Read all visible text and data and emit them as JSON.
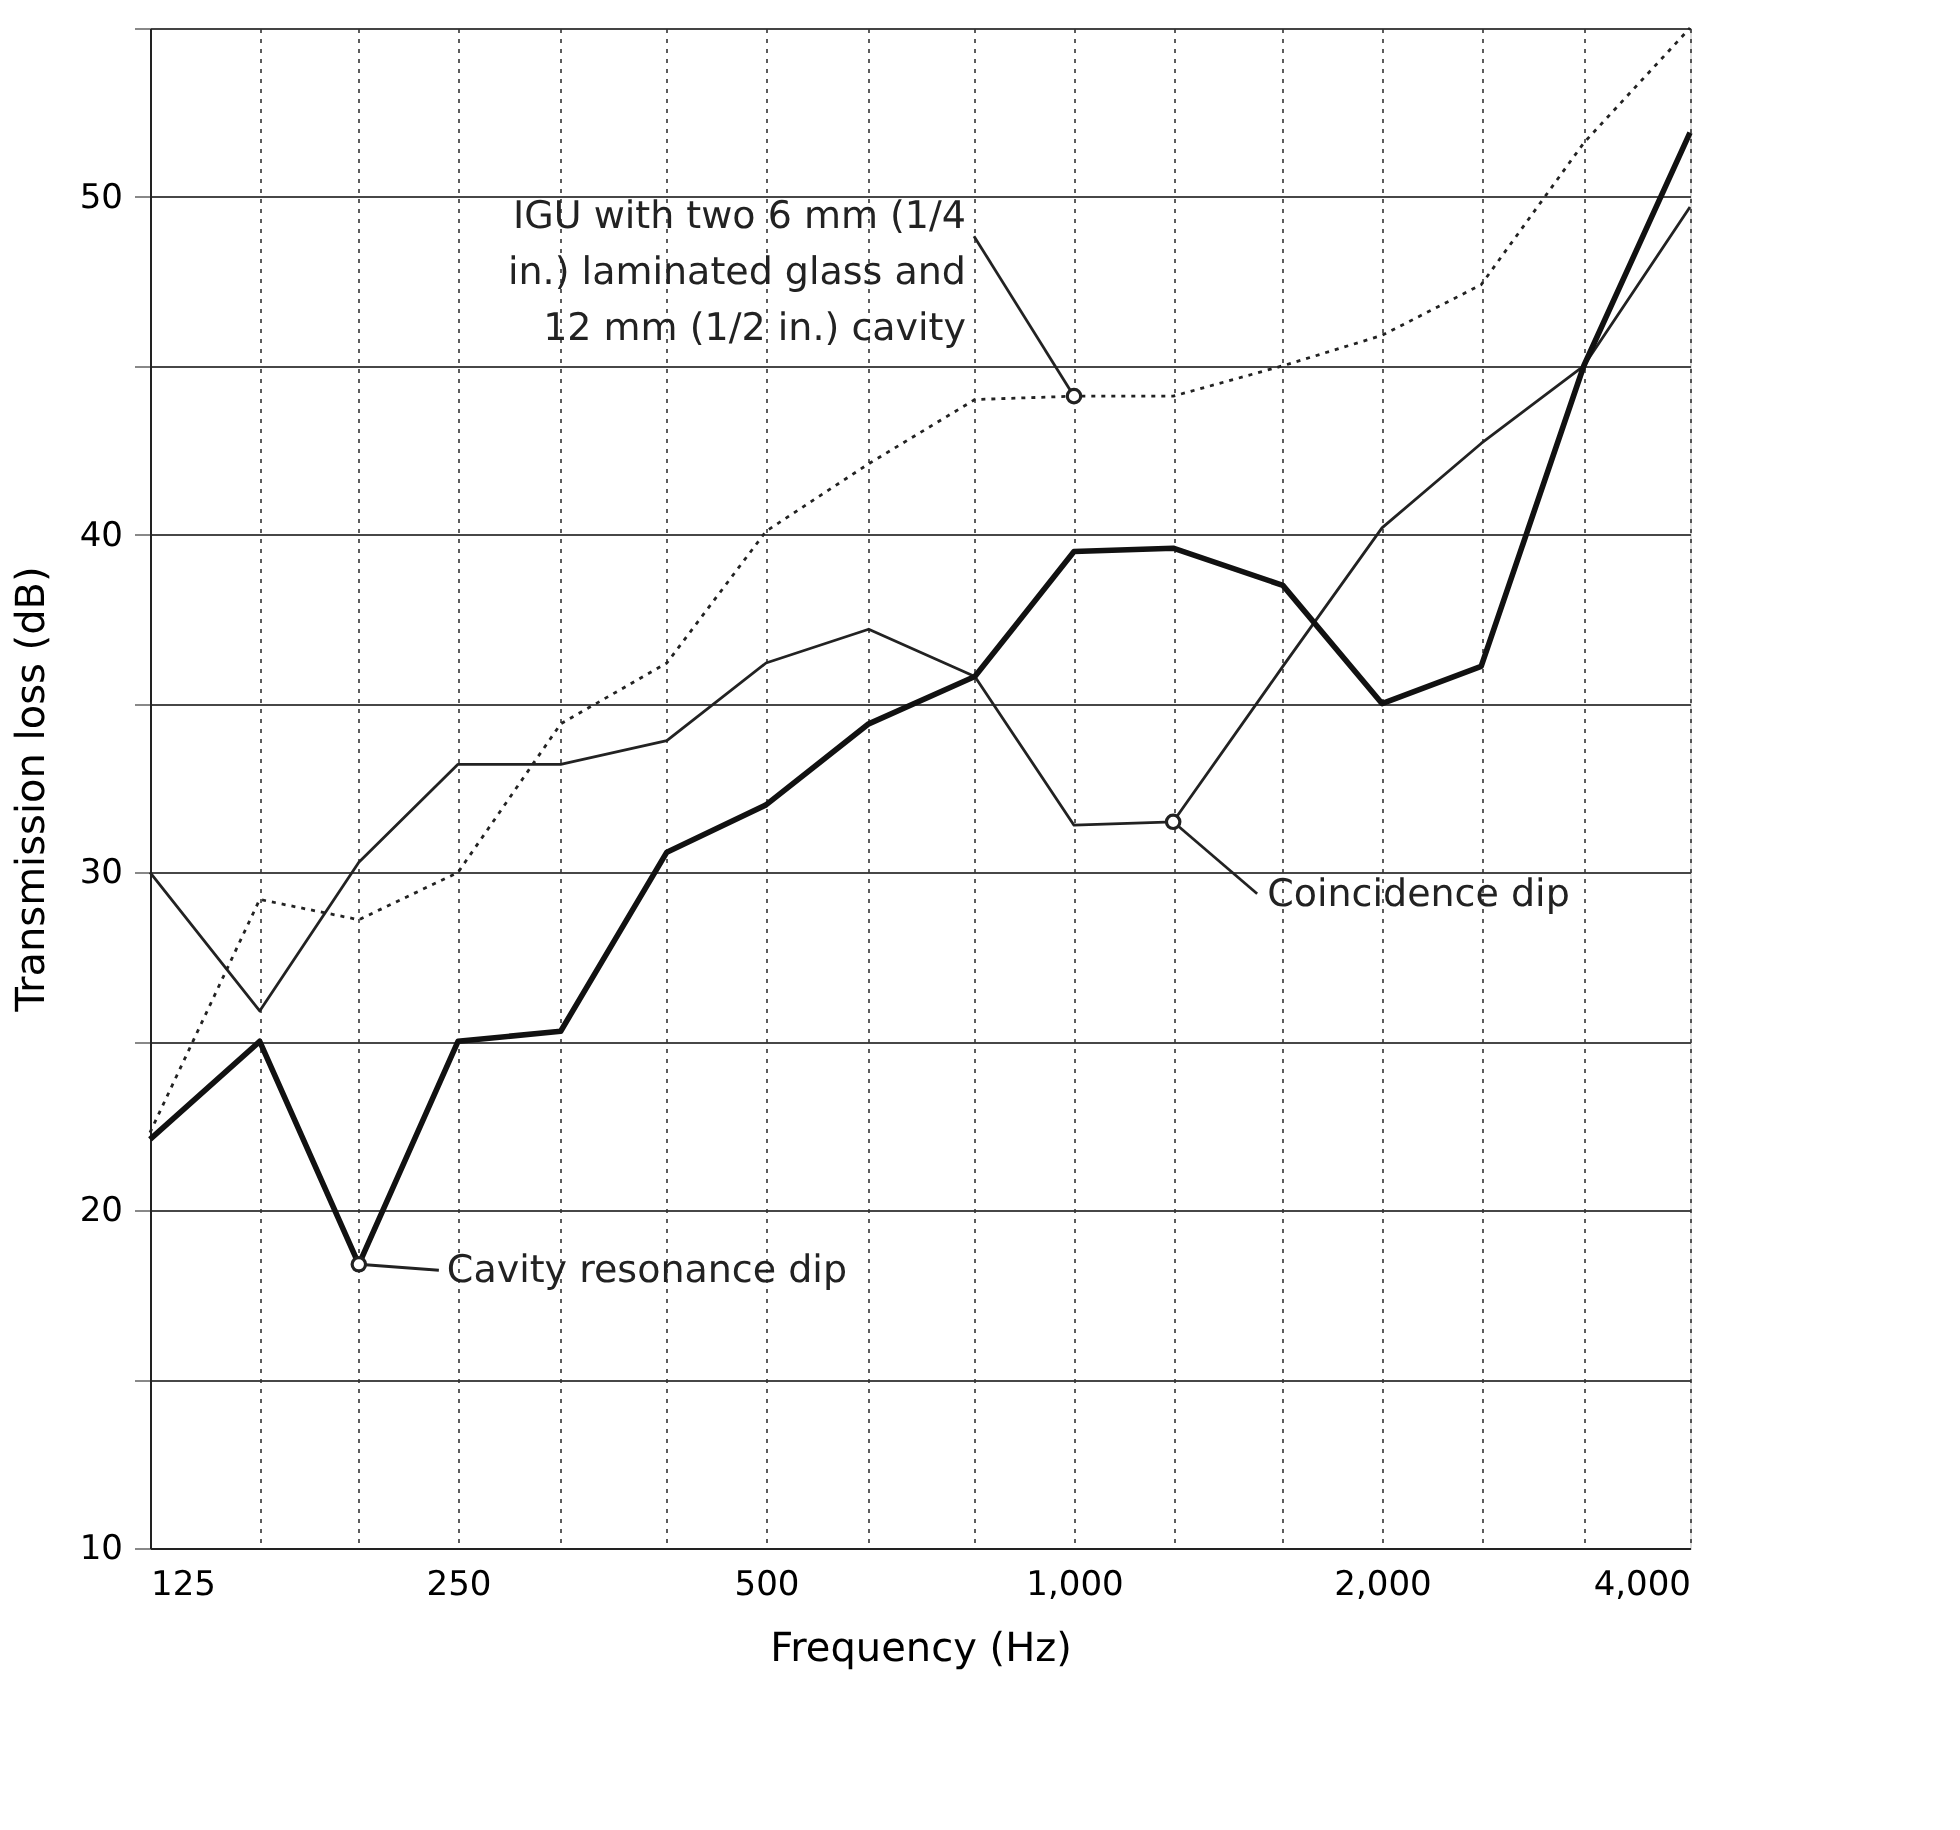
{
  "chart_data": {
    "type": "line",
    "xlabel": "Frequency (Hz)",
    "ylabel": "Transmission loss (dB)",
    "x": [
      125,
      160,
      200,
      250,
      315,
      400,
      500,
      630,
      800,
      1000,
      1250,
      1600,
      2000,
      2500,
      3150,
      4000
    ],
    "series": [
      {
        "color": "#222222",
        "line_style": "dotted",
        "values": [
          22.3,
          29.2,
          28.6,
          30,
          34.4,
          36.2,
          40.1,
          42.1,
          44,
          44.1,
          44.1,
          45,
          45.9,
          47.4,
          51.6,
          55
        ]
      },
      {
        "color": "#222222",
        "line_style": "solid",
        "values": [
          30,
          25.9,
          30.3,
          33.2,
          33.2,
          33.9,
          36.2,
          37.2,
          35.8,
          31.4,
          31.5,
          36.1,
          40.2,
          42.7,
          45,
          49.7
        ]
      },
      {
        "color": "#111111",
        "line_style": "solid",
        "values": [
          22.1,
          25,
          18.4,
          25,
          25.3,
          30.6,
          32,
          34.4,
          35.8,
          39.5,
          39.6,
          38.5,
          35,
          36.1,
          45,
          51.9
        ]
      }
    ],
    "log": "x",
    "xlim": [
      125,
      4000
    ],
    "ylim": [
      10,
      55
    ],
    "xticks": [
      125,
      {
        "value": 160,
        "label": null
      },
      {
        "value": 200,
        "label": null
      },
      250,
      {
        "value": 315,
        "label": null
      },
      {
        "value": 400,
        "label": null
      },
      500,
      {
        "value": 630,
        "label": null
      },
      {
        "value": 800,
        "label": null
      },
      {
        "value": 1000,
        "label": "1,000"
      },
      {
        "value": 1250,
        "label": null
      },
      {
        "value": 1600,
        "label": null
      },
      {
        "value": 2000,
        "label": "2,000"
      },
      {
        "value": 2500,
        "label": null
      },
      {
        "value": 3150,
        "label": null
      },
      {
        "value": 4000,
        "label": "4,000"
      }
    ],
    "yticks": [
      10,
      {
        "value": 15,
        "label": null
      },
      20,
      {
        "value": 25,
        "label": null
      },
      30,
      {
        "value": 35,
        "label": null
      },
      40,
      {
        "value": 45,
        "label": null
      },
      50,
      {
        "value": 55,
        "label": null
      }
    ],
    "grid": true,
    "marker": "none",
    "annotations": [
      {
        "text": "IGU with two 6 mm (1/4 in.) laminated glass and 12 mm (1/2 in.) cavity",
        "x": 1000,
        "y": 44.1
      },
      {
        "text": "Cavity resonance dip",
        "x": 200,
        "y": 18.4
      },
      {
        "text": "Coincidence dip",
        "x": 1250,
        "y": 31.5
      }
    ]
  }
}
